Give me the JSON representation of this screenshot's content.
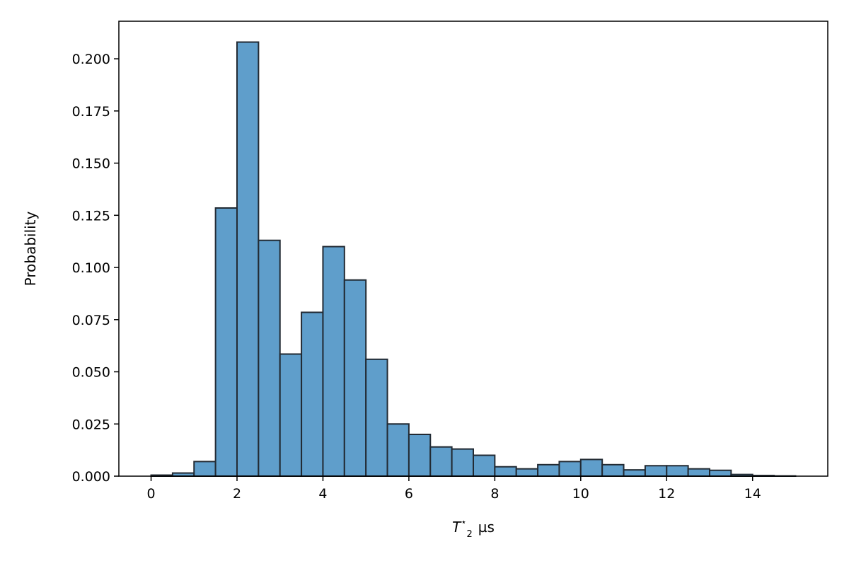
{
  "chart_data": {
    "type": "bar",
    "subtype": "histogram",
    "title": "",
    "xlabel": {
      "symbol": "T",
      "subscript": "2",
      "superscript": "⋆",
      "unit": "µs"
    },
    "ylabel": "Probability",
    "xlim": [
      -0.75,
      15.75
    ],
    "ylim": [
      0,
      0.218
    ],
    "xticks": [
      0,
      2,
      4,
      6,
      8,
      10,
      12,
      14
    ],
    "xtick_labels": [
      "0",
      "2",
      "4",
      "6",
      "8",
      "10",
      "12",
      "14"
    ],
    "yticks": [
      0.0,
      0.025,
      0.05,
      0.075,
      0.1,
      0.125,
      0.15,
      0.175,
      0.2
    ],
    "ytick_labels": [
      "0.000",
      "0.025",
      "0.050",
      "0.075",
      "0.100",
      "0.125",
      "0.150",
      "0.175",
      "0.200"
    ],
    "bin_edges": [
      0,
      0.5,
      1,
      1.5,
      2,
      2.5,
      3,
      3.5,
      4,
      4.5,
      5,
      5.5,
      6,
      6.5,
      7,
      7.5,
      8,
      8.5,
      9,
      9.5,
      10,
      10.5,
      11,
      11.5,
      12,
      12.5,
      13,
      13.5,
      14,
      14.5,
      15
    ],
    "values": [
      0.0005,
      0.0015,
      0.007,
      0.1285,
      0.208,
      0.113,
      0.0585,
      0.0785,
      0.11,
      0.094,
      0.056,
      0.025,
      0.02,
      0.014,
      0.013,
      0.01,
      0.0045,
      0.0035,
      0.0055,
      0.007,
      0.008,
      0.0055,
      0.003,
      0.005,
      0.005,
      0.0035,
      0.0028,
      0.0008,
      0.0003,
      0.0001
    ],
    "grid": false,
    "legend": "none",
    "colors": {
      "fill": "#5f9ecb",
      "edge": "#222a33"
    }
  }
}
